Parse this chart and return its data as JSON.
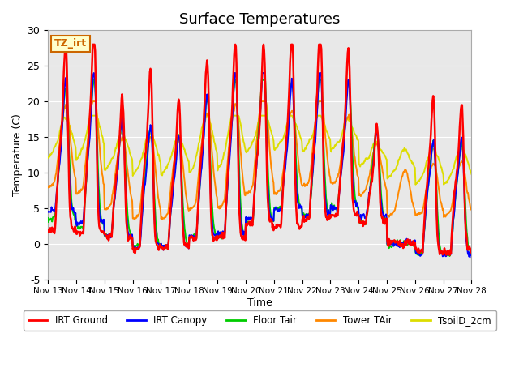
{
  "title": "Surface Temperatures",
  "ylabel": "Temperature (C)",
  "xlabel": "Time",
  "ylim": [
    -5,
    30
  ],
  "annotation_text": "TZ_irt",
  "annotation_color": "#cc6600",
  "annotation_bg": "#ffffcc",
  "plot_bg": "#e8e8e8",
  "series": {
    "IRT Ground": {
      "color": "#ff0000",
      "lw": 1.8
    },
    "IRT Canopy": {
      "color": "#0000ff",
      "lw": 1.4
    },
    "Floor Tair": {
      "color": "#00cc00",
      "lw": 1.4
    },
    "Tower TAir": {
      "color": "#ff8800",
      "lw": 1.4
    },
    "TsoilD_2cm": {
      "color": "#dddd00",
      "lw": 1.4
    }
  },
  "xtick_labels": [
    "Nov 13",
    "Nov 14",
    "Nov 15",
    "Nov 16",
    "Nov 17",
    "Nov 18",
    "Nov 19",
    "Nov 20",
    "Nov 21",
    "Nov 22",
    "Nov 23",
    "Nov 24",
    "Nov 25",
    "Nov 26",
    "Nov 27",
    "Nov 28"
  ],
  "ytick_values": [
    -5,
    0,
    5,
    10,
    15,
    20,
    25,
    30
  ],
  "n_days": 15,
  "n_pts_per_day": 48,
  "seed": 7
}
